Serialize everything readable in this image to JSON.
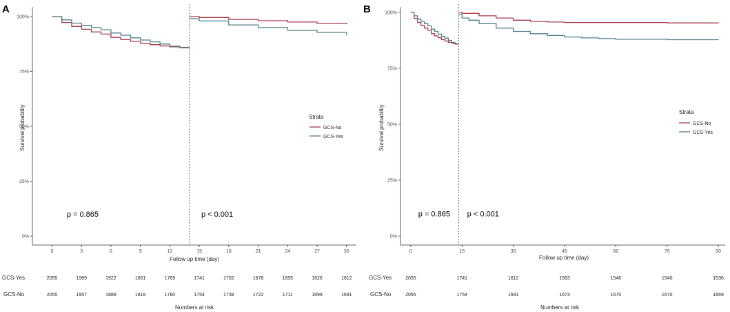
{
  "chart_data": [
    {
      "panel_label": "A",
      "type": "line",
      "subtype": "kaplan-meier-step",
      "xlabel": "Follow up time (day)",
      "ylabel": "Survival probability",
      "xlim": [
        -2,
        31
      ],
      "ylim": [
        0,
        1
      ],
      "x_ticks": [
        0,
        3,
        6,
        9,
        12,
        15,
        18,
        21,
        24,
        27,
        30
      ],
      "y_ticks": [
        0,
        0.25,
        0.5,
        0.75,
        1.0
      ],
      "y_tick_labels": [
        "0%",
        "25%",
        "50%",
        "75%",
        "100%"
      ],
      "landmark_day": 14,
      "legend": {
        "title": "Strata",
        "position": "right",
        "items": [
          "GCS-No",
          "GCS-Yes"
        ]
      },
      "annotations": [
        {
          "text": "p = 0.865",
          "x": 1.5,
          "y": 0.1
        },
        {
          "text": "p < 0.001",
          "x": 15.2,
          "y": 0.1
        }
      ],
      "series": [
        {
          "name": "GCS-No",
          "color": "#a63c4a",
          "segments": [
            {
              "x": [
                0,
                1,
                2,
                3,
                4,
                5,
                6,
                7,
                8,
                9,
                10,
                11,
                12,
                13,
                14
              ],
              "y": [
                1.0,
                0.973,
                0.955,
                0.942,
                0.93,
                0.92,
                0.905,
                0.895,
                0.887,
                0.878,
                0.872,
                0.866,
                0.862,
                0.858,
                0.858
              ]
            },
            {
              "x": [
                14,
                15,
                18,
                21,
                24,
                27,
                30
              ],
              "y": [
                1.0,
                0.996,
                0.987,
                0.981,
                0.975,
                0.969,
                0.965
              ]
            }
          ]
        },
        {
          "name": "GCS-Yes",
          "color": "#4f7f8c",
          "segments": [
            {
              "x": [
                0,
                1,
                2,
                3,
                4,
                5,
                6,
                7,
                8,
                9,
                10,
                11,
                12,
                13,
                14
              ],
              "y": [
                1.0,
                0.985,
                0.97,
                0.96,
                0.95,
                0.94,
                0.925,
                0.915,
                0.903,
                0.893,
                0.885,
                0.875,
                0.865,
                0.86,
                0.86
              ]
            },
            {
              "x": [
                14,
                15,
                18,
                21,
                24,
                27,
                30
              ],
              "y": [
                0.99,
                0.98,
                0.962,
                0.95,
                0.937,
                0.928,
                0.915
              ]
            }
          ]
        }
      ],
      "risk_table": {
        "title": "Numbers at risk",
        "time_points": [
          0,
          3,
          6,
          9,
          12,
          15,
          18,
          21,
          24,
          27,
          30
        ],
        "rows": [
          {
            "label": "GCS-Yes",
            "values": [
              "2055",
              "1989",
              "1922",
              "1851",
              "1789",
              "1741",
              "1702",
              "1678",
              "1655",
              "1626",
              "1612"
            ]
          },
          {
            "label": "GCS-No",
            "values": [
              "2055",
              "1957",
              "1888",
              "1818",
              "1780",
              "1754",
              "1738",
              "1722",
              "1711",
              "1699",
              "1691"
            ]
          }
        ]
      }
    },
    {
      "panel_label": "B",
      "type": "line",
      "subtype": "kaplan-meier-step",
      "xlabel": "Follow up time (day)",
      "ylabel": "Survival probability",
      "xlim": [
        -3,
        92
      ],
      "ylim": [
        0,
        1
      ],
      "x_ticks": [
        0,
        15,
        30,
        45,
        60,
        75,
        90
      ],
      "y_ticks": [
        0,
        0.25,
        0.5,
        0.75,
        1.0
      ],
      "y_tick_labels": [
        "0%",
        "25%",
        "50%",
        "75%",
        "100%"
      ],
      "landmark_day": 14,
      "legend": {
        "title": "Strata",
        "position": "right",
        "items": [
          "GCS-No",
          "GCS-Yes"
        ]
      },
      "annotations": [
        {
          "text": "p = 0.865",
          "x": 2.2,
          "y": 0.1
        },
        {
          "text": "p < 0.001",
          "x": 16.5,
          "y": 0.1
        }
      ],
      "series": [
        {
          "name": "GCS-No",
          "color": "#a63c4a",
          "segments": [
            {
              "x": [
                0,
                1,
                2,
                3,
                4,
                5,
                6,
                7,
                8,
                9,
                10,
                11,
                12,
                13,
                14
              ],
              "y": [
                1.0,
                0.973,
                0.955,
                0.942,
                0.93,
                0.92,
                0.905,
                0.895,
                0.887,
                0.878,
                0.872,
                0.866,
                0.862,
                0.858,
                0.858
              ]
            },
            {
              "x": [
                14,
                15,
                20,
                25,
                30,
                35,
                40,
                45,
                60,
                75,
                90
              ],
              "y": [
                1.0,
                0.996,
                0.985,
                0.975,
                0.965,
                0.96,
                0.957,
                0.955,
                0.955,
                0.953,
                0.952
              ]
            }
          ]
        },
        {
          "name": "GCS-Yes",
          "color": "#4f7f8c",
          "segments": [
            {
              "x": [
                0,
                1,
                2,
                3,
                4,
                5,
                6,
                7,
                8,
                9,
                10,
                11,
                12,
                13,
                14
              ],
              "y": [
                1.0,
                0.985,
                0.97,
                0.96,
                0.95,
                0.94,
                0.925,
                0.915,
                0.903,
                0.893,
                0.885,
                0.875,
                0.865,
                0.86,
                0.86
              ]
            },
            {
              "x": [
                14,
                15,
                17,
                20,
                25,
                30,
                35,
                40,
                45,
                50,
                55,
                60,
                75,
                90
              ],
              "y": [
                0.99,
                0.975,
                0.965,
                0.95,
                0.93,
                0.915,
                0.905,
                0.897,
                0.89,
                0.886,
                0.883,
                0.88,
                0.878,
                0.877
              ]
            }
          ]
        }
      ],
      "risk_table": {
        "title": "Numbers at risk",
        "time_points": [
          0,
          15,
          30,
          45,
          60,
          75,
          90
        ],
        "rows": [
          {
            "label": "GCS-Yes",
            "values": [
              "2055",
              "1741",
              "1612",
              "1563",
              "1546",
              "1540",
              "1536"
            ]
          },
          {
            "label": "GCS-No",
            "values": [
              "2055",
              "1754",
              "1691",
              "1673",
              "1670",
              "1670",
              "1669"
            ]
          }
        ]
      }
    }
  ]
}
